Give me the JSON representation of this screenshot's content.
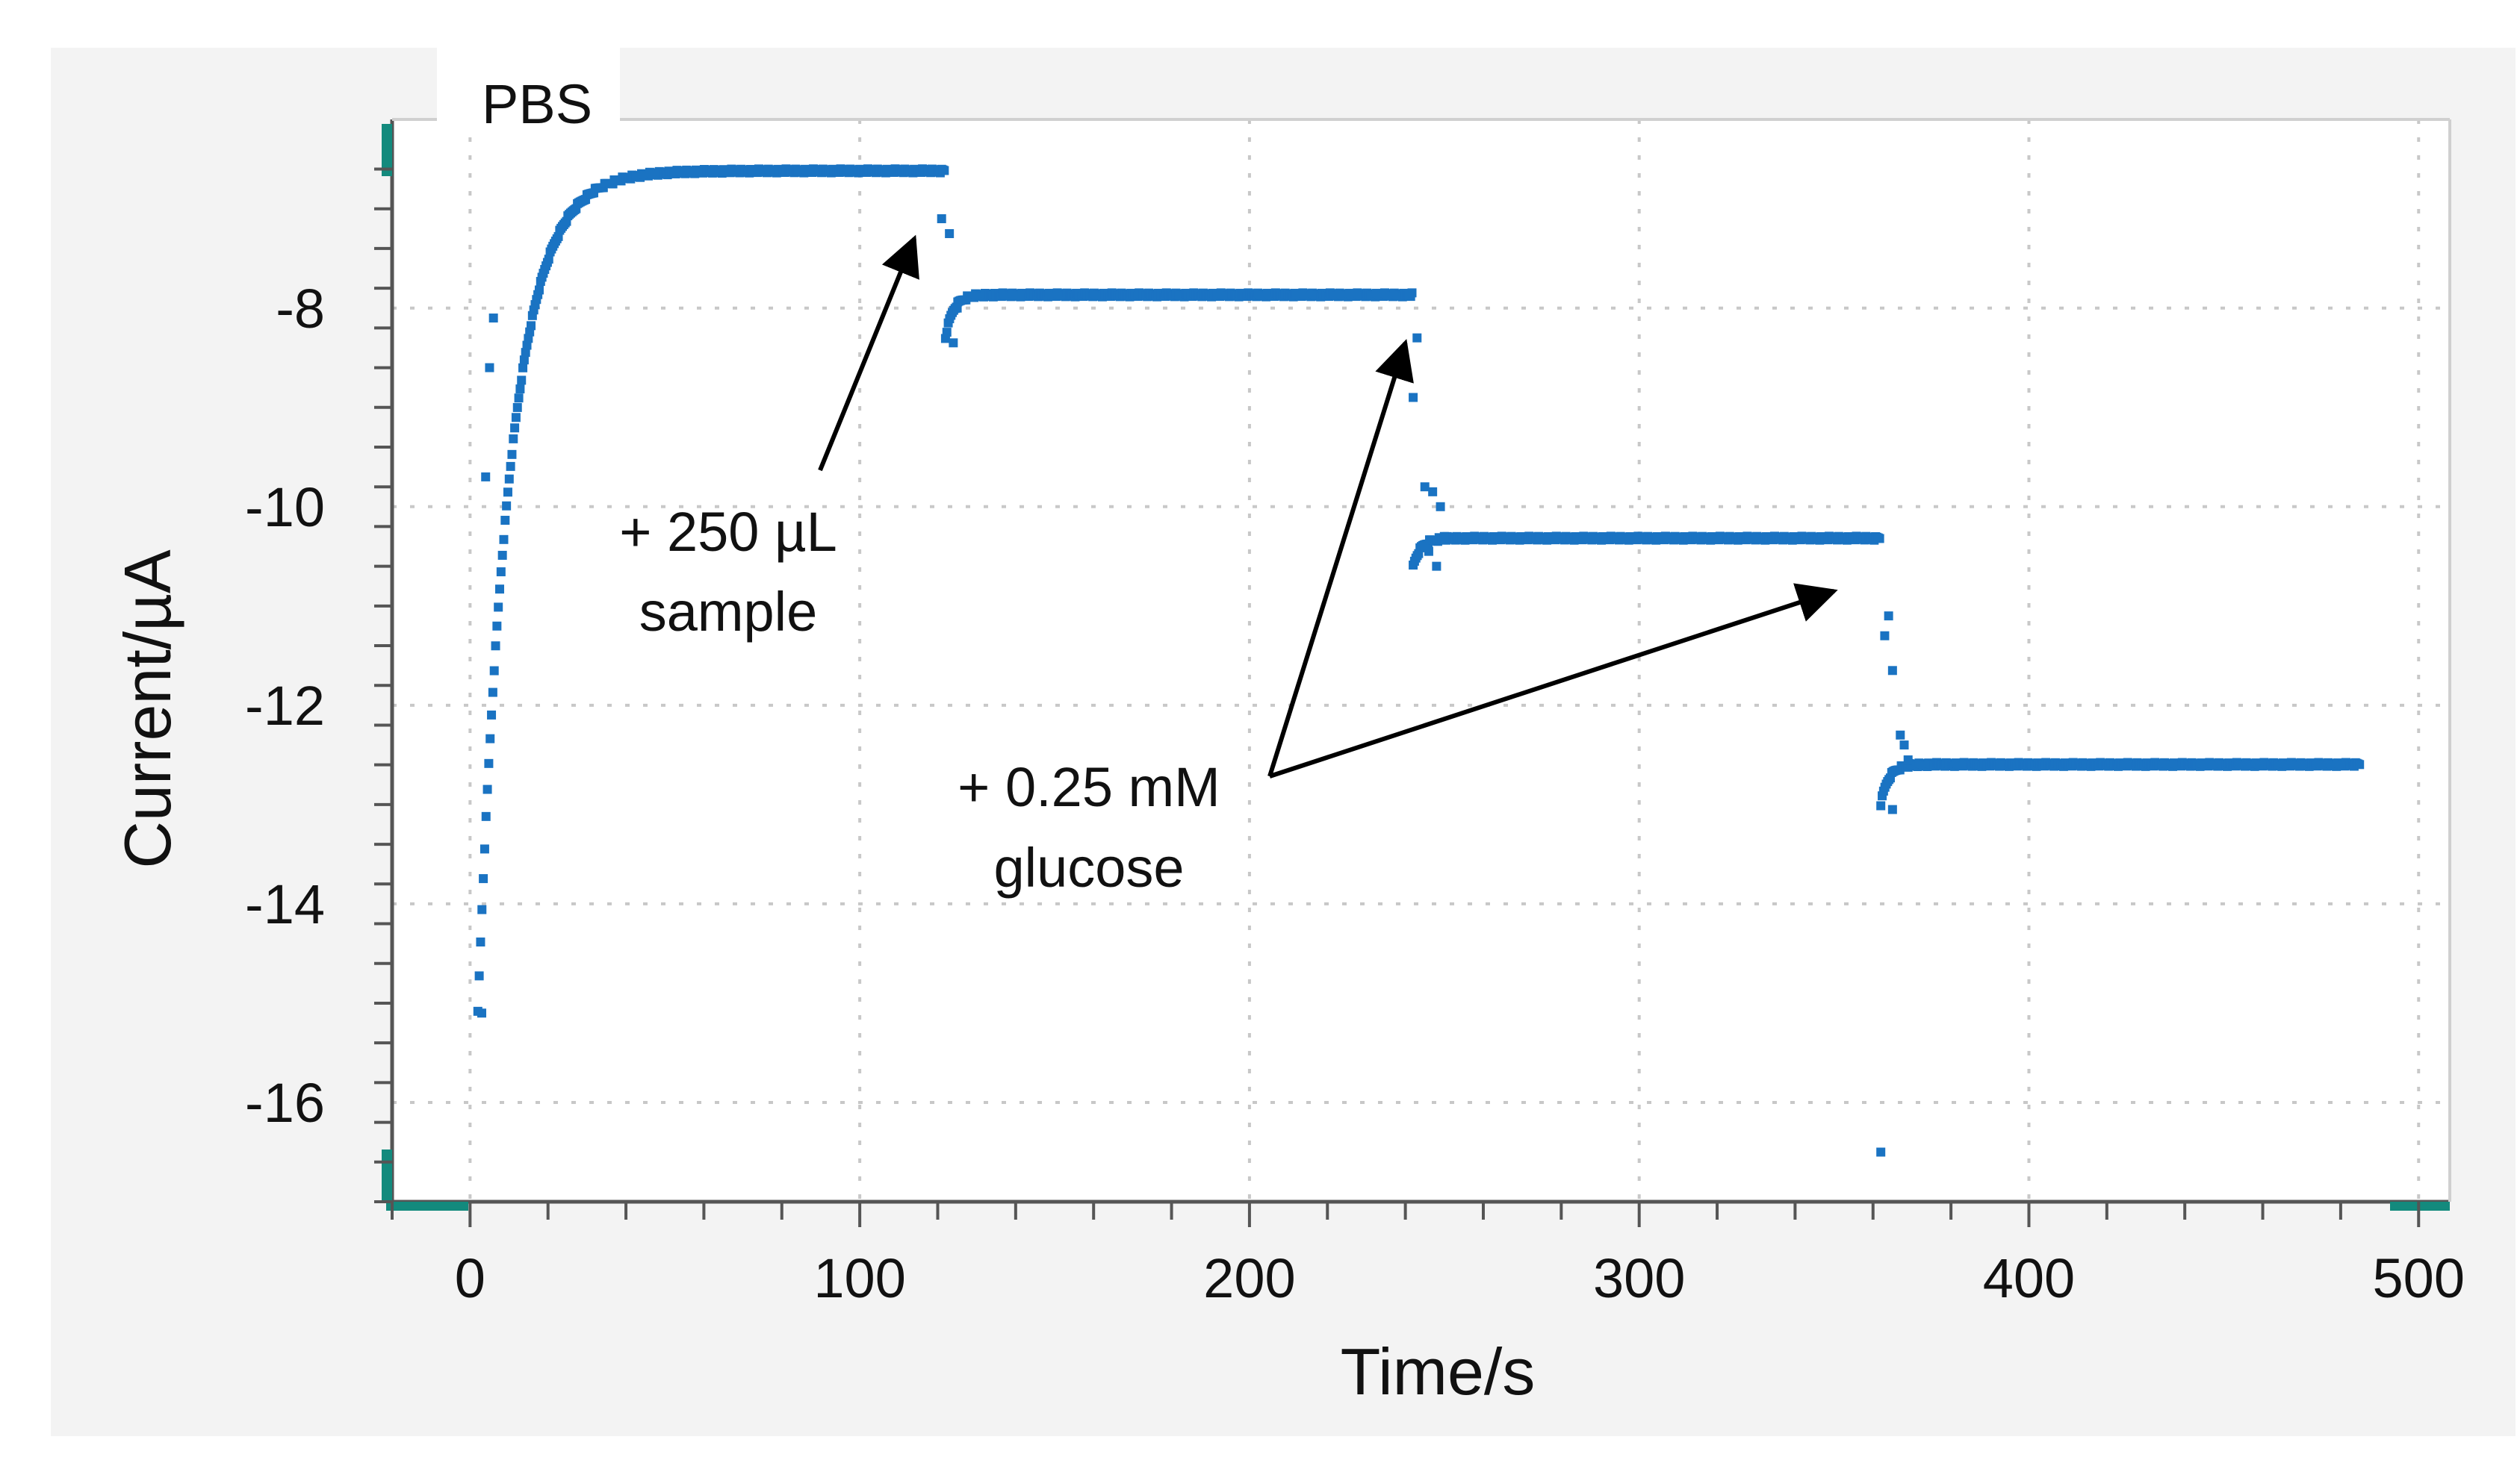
{
  "chart_data": {
    "type": "scatter",
    "title": "",
    "legend_label": "PBS",
    "xlabel": "Time/s",
    "ylabel": "Current/µA",
    "xlim": [
      -20,
      508
    ],
    "ylim": [
      -17.0,
      -6.1
    ],
    "xticks": [
      0,
      100,
      200,
      300,
      400,
      500
    ],
    "xtick_labels": [
      "0",
      "100",
      "200",
      "300",
      "400",
      "500"
    ],
    "yticks": [
      -8,
      -10,
      -12,
      -14,
      -16
    ],
    "ytick_labels": [
      "-8",
      "-10",
      "-12",
      "-14",
      "-16"
    ],
    "grid": true,
    "marker_color": "#1a73c2",
    "axis_accent_color": "#138a7d",
    "segments": [
      {
        "name": "baseline-pbs",
        "x_start": 2,
        "x_end": 122,
        "level": -6.62,
        "start": -15.1,
        "tau": 8
      },
      {
        "name": "sample-step",
        "x_start": 122,
        "x_end": 242,
        "level": -7.87,
        "start": -8.3,
        "tau": 2
      },
      {
        "name": "glucose-step-1",
        "x_start": 242,
        "x_end": 362,
        "level": -10.32,
        "start": -10.6,
        "tau": 2
      },
      {
        "name": "glucose-step-2",
        "x_start": 362,
        "x_end": 485,
        "level": -12.6,
        "start": -13.0,
        "tau": 2
      }
    ],
    "transient_points": [
      {
        "x": 3,
        "y": -15.1
      },
      {
        "x": 4,
        "y": -9.7
      },
      {
        "x": 5,
        "y": -8.6
      },
      {
        "x": 6,
        "y": -8.1
      },
      {
        "x": 121,
        "y": -7.1
      },
      {
        "x": 123,
        "y": -7.25
      },
      {
        "x": 124,
        "y": -8.35
      },
      {
        "x": 125,
        "y": -8.0
      },
      {
        "x": 243,
        "y": -8.3
      },
      {
        "x": 242,
        "y": -8.9
      },
      {
        "x": 245,
        "y": -9.8
      },
      {
        "x": 247,
        "y": -9.85
      },
      {
        "x": 246,
        "y": -10.45
      },
      {
        "x": 248,
        "y": -10.6
      },
      {
        "x": 249,
        "y": -10.0
      },
      {
        "x": 250,
        "y": -10.3
      },
      {
        "x": 362,
        "y": -16.5
      },
      {
        "x": 363,
        "y": -11.3
      },
      {
        "x": 364,
        "y": -11.1
      },
      {
        "x": 365,
        "y": -11.65
      },
      {
        "x": 365,
        "y": -13.05
      },
      {
        "x": 367,
        "y": -12.3
      },
      {
        "x": 368,
        "y": -12.4
      },
      {
        "x": 369,
        "y": -12.55
      }
    ],
    "annotations": [
      {
        "line1": "+ 250 µL",
        "line2": "sample",
        "arrow_targets": [
          [
            114,
            -7.3
          ]
        ]
      },
      {
        "line1": "+ 0.25 mM",
        "line2": "glucose",
        "arrow_targets": [
          [
            240,
            -8.35
          ],
          [
            350,
            -10.85
          ]
        ]
      }
    ]
  }
}
